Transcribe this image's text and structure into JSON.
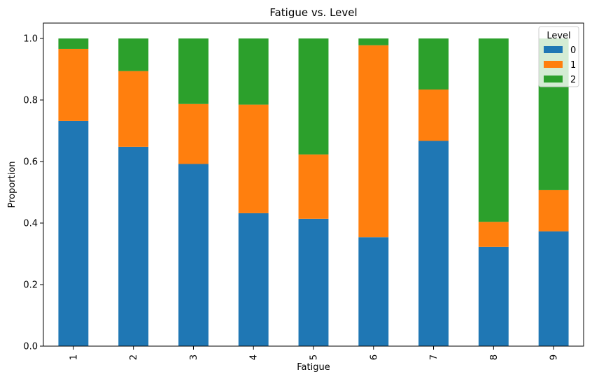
{
  "chart_data": {
    "type": "bar",
    "stacked": true,
    "title": "Fatigue vs. Level",
    "xlabel": "Fatigue",
    "ylabel": "Proportion",
    "categories": [
      "1",
      "2",
      "3",
      "4",
      "5",
      "6",
      "7",
      "8",
      "9"
    ],
    "ylim": [
      0,
      1.05
    ],
    "yticks": [
      "0.0",
      "0.2",
      "0.4",
      "0.6",
      "0.8",
      "1.0"
    ],
    "grid": false,
    "legend": {
      "title": "Level",
      "placement": "top-right"
    },
    "series": [
      {
        "name": "0",
        "color": "#1f77b4",
        "values": [
          0.732,
          0.648,
          0.592,
          0.432,
          0.414,
          0.354,
          0.667,
          0.323,
          0.373
        ]
      },
      {
        "name": "1",
        "color": "#ff7f0e",
        "values": [
          0.234,
          0.246,
          0.195,
          0.353,
          0.209,
          0.624,
          0.167,
          0.081,
          0.134
        ]
      },
      {
        "name": "2",
        "color": "#2ca02c",
        "values": [
          0.034,
          0.106,
          0.213,
          0.215,
          0.377,
          0.022,
          0.166,
          0.596,
          0.493
        ]
      }
    ]
  }
}
